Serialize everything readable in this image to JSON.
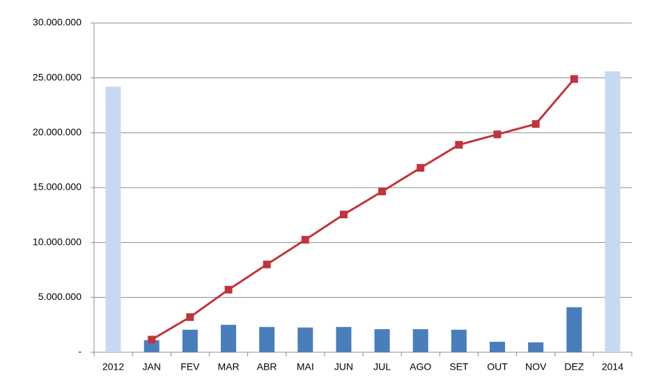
{
  "chart_data": {
    "type": "bar-line",
    "categories": [
      "2012",
      "JAN",
      "FEV",
      "MAR",
      "ABR",
      "MAI",
      "JUN",
      "JUL",
      "AGO",
      "SET",
      "OUT",
      "NOV",
      "DEZ",
      "2014"
    ],
    "series": [
      {
        "type": "bar",
        "values": [
          24200000,
          1100000,
          2050000,
          2500000,
          2300000,
          2250000,
          2300000,
          2100000,
          2100000,
          2050000,
          950000,
          900000,
          4100000,
          25600000
        ],
        "colors": [
          "#c5d9f1",
          "#4a7ebb",
          "#4a7ebb",
          "#4a7ebb",
          "#4a7ebb",
          "#4a7ebb",
          "#4a7ebb",
          "#4a7ebb",
          "#4a7ebb",
          "#4a7ebb",
          "#4a7ebb",
          "#4a7ebb",
          "#4a7ebb",
          "#c5d9f1"
        ]
      },
      {
        "type": "line",
        "color": "#c0343c",
        "values": [
          null,
          1150000,
          3200000,
          5700000,
          8000000,
          10250000,
          12550000,
          14650000,
          16800000,
          18900000,
          19850000,
          20800000,
          24900000,
          null
        ]
      }
    ],
    "ylim": [
      0,
      30000000
    ],
    "yticks": [
      {
        "value": 0,
        "label": "-"
      },
      {
        "value": 5000000,
        "label": "5.000.000"
      },
      {
        "value": 10000000,
        "label": "10.000.000"
      },
      {
        "value": 15000000,
        "label": "15.000.000"
      },
      {
        "value": 20000000,
        "label": "20.000.000"
      },
      {
        "value": 25000000,
        "label": "25.000.000"
      },
      {
        "value": 30000000,
        "label": "30.000.000"
      }
    ],
    "grid": true
  }
}
